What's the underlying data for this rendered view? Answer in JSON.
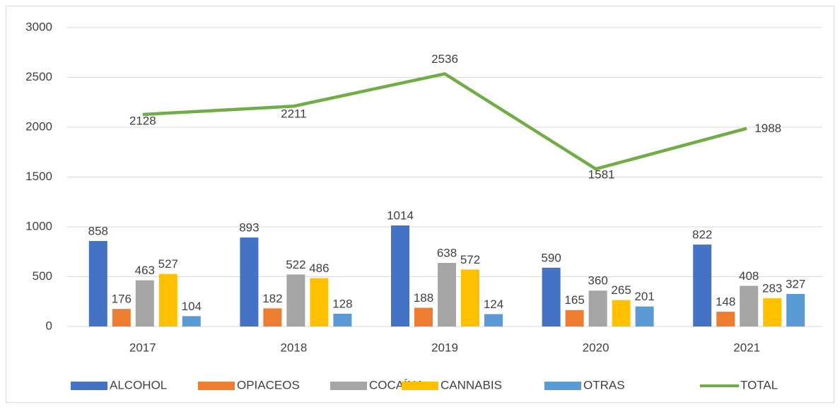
{
  "chart_data": {
    "type": "bar",
    "categories": [
      "2017",
      "2018",
      "2019",
      "2020",
      "2021"
    ],
    "series": [
      {
        "name": "ALCOHOL",
        "color": "#4472c4",
        "values": [
          858,
          893,
          1014,
          590,
          822
        ]
      },
      {
        "name": "OPIACEOS",
        "color": "#ed7d31",
        "values": [
          176,
          182,
          188,
          165,
          148
        ]
      },
      {
        "name": "COCAÍNA",
        "color": "#a5a5a5",
        "values": [
          463,
          522,
          638,
          360,
          408
        ]
      },
      {
        "name": "CANNABIS",
        "color": "#ffc000",
        "values": [
          527,
          486,
          572,
          265,
          283
        ]
      },
      {
        "name": "OTRAS",
        "color": "#5b9bd5",
        "values": [
          104,
          128,
          124,
          201,
          327
        ]
      },
      {
        "name": "TOTAL",
        "color": "#70ad47",
        "type": "line",
        "values": [
          2128,
          2211,
          2536,
          1581,
          1988
        ]
      }
    ],
    "ylim": [
      0,
      3000
    ],
    "yticks": [
      0,
      500,
      1000,
      1500,
      2000,
      2500,
      3000
    ],
    "grid": true,
    "legend": "bottom"
  }
}
